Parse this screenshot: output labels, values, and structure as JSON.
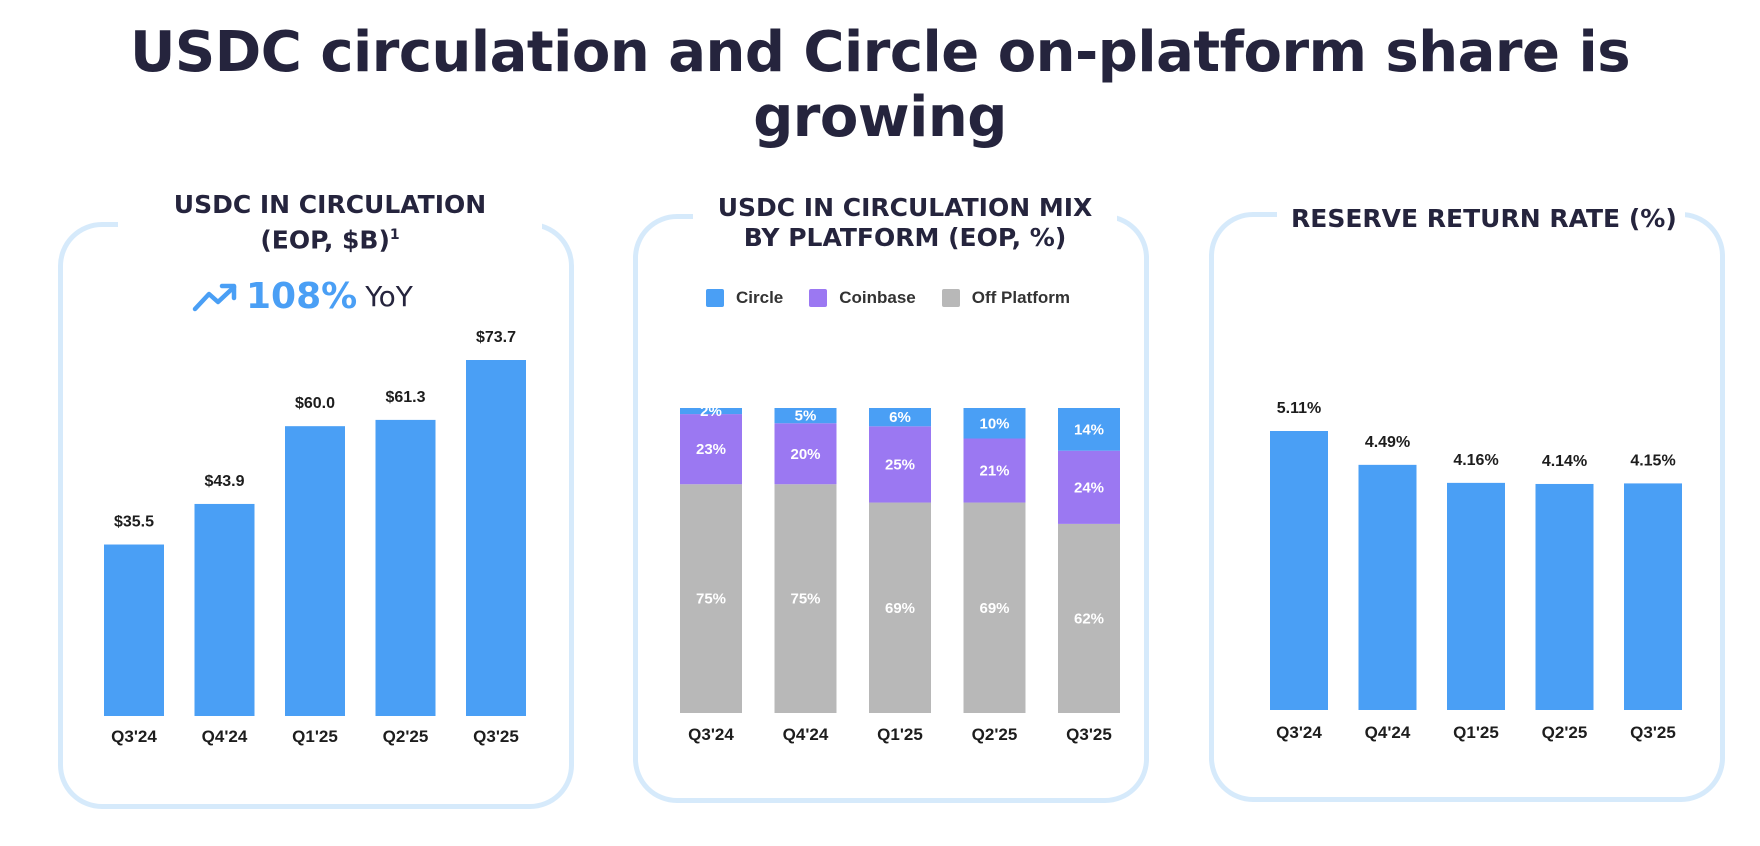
{
  "title": "USDC circulation and Circle on-platform share is growing",
  "colors": {
    "bar_blue": "#4a9ff5",
    "circle": "#4a9ff5",
    "coinbase": "#9b78f2",
    "off_platform": "#b8b8b8",
    "panel_border": "#d6eafb"
  },
  "panel1": {
    "title_line1": "USDC IN CIRCULATION",
    "title_line2": "(EOP, $B)",
    "title_footnote": "1",
    "trend_icon": "trending-up-icon",
    "yoy_value": "108%",
    "yoy_label": "YoY"
  },
  "panel2": {
    "title_line1": "USDC IN CIRCULATION MIX",
    "title_line2": "BY PLATFORM (EOP, %)",
    "legend": [
      "Circle",
      "Coinbase",
      "Off Platform"
    ]
  },
  "panel3": {
    "title": "RESERVE RETURN RATE (%)"
  },
  "chart_data": [
    {
      "type": "bar",
      "title": "USDC IN CIRCULATION (EOP, $B)",
      "categories": [
        "Q3'24",
        "Q4'24",
        "Q1'25",
        "Q2'25",
        "Q3'25"
      ],
      "values": [
        35.5,
        43.9,
        60.0,
        61.3,
        73.7
      ],
      "labels": [
        "$35.5",
        "$43.9",
        "$60.0",
        "$61.3",
        "$73.7"
      ],
      "ylim": [
        0,
        73.7
      ]
    },
    {
      "type": "bar",
      "stacked": true,
      "title": "USDC IN CIRCULATION MIX BY PLATFORM (EOP, %)",
      "categories": [
        "Q3'24",
        "Q4'24",
        "Q1'25",
        "Q2'25",
        "Q3'25"
      ],
      "series": [
        {
          "name": "Off Platform",
          "values": [
            75,
            75,
            69,
            69,
            62
          ],
          "labels": [
            "75%",
            "75%",
            "69%",
            "69%",
            "62%"
          ]
        },
        {
          "name": "Coinbase",
          "values": [
            23,
            20,
            25,
            21,
            24
          ],
          "labels": [
            "23%",
            "20%",
            "25%",
            "21%",
            "24%"
          ]
        },
        {
          "name": "Circle",
          "values": [
            2,
            5,
            6,
            10,
            14
          ],
          "labels": [
            "2%",
            "5%",
            "6%",
            "10%",
            "14%"
          ]
        }
      ],
      "legend_position": "top",
      "ylim": [
        0,
        100
      ]
    },
    {
      "type": "bar",
      "title": "RESERVE RETURN RATE (%)",
      "categories": [
        "Q3'24",
        "Q4'24",
        "Q1'25",
        "Q2'25",
        "Q3'25"
      ],
      "values": [
        5.11,
        4.49,
        4.16,
        4.14,
        4.15
      ],
      "labels": [
        "5.11%",
        "4.49%",
        "4.16%",
        "4.14%",
        "4.15%"
      ],
      "ylim": [
        0,
        5.11
      ]
    }
  ]
}
